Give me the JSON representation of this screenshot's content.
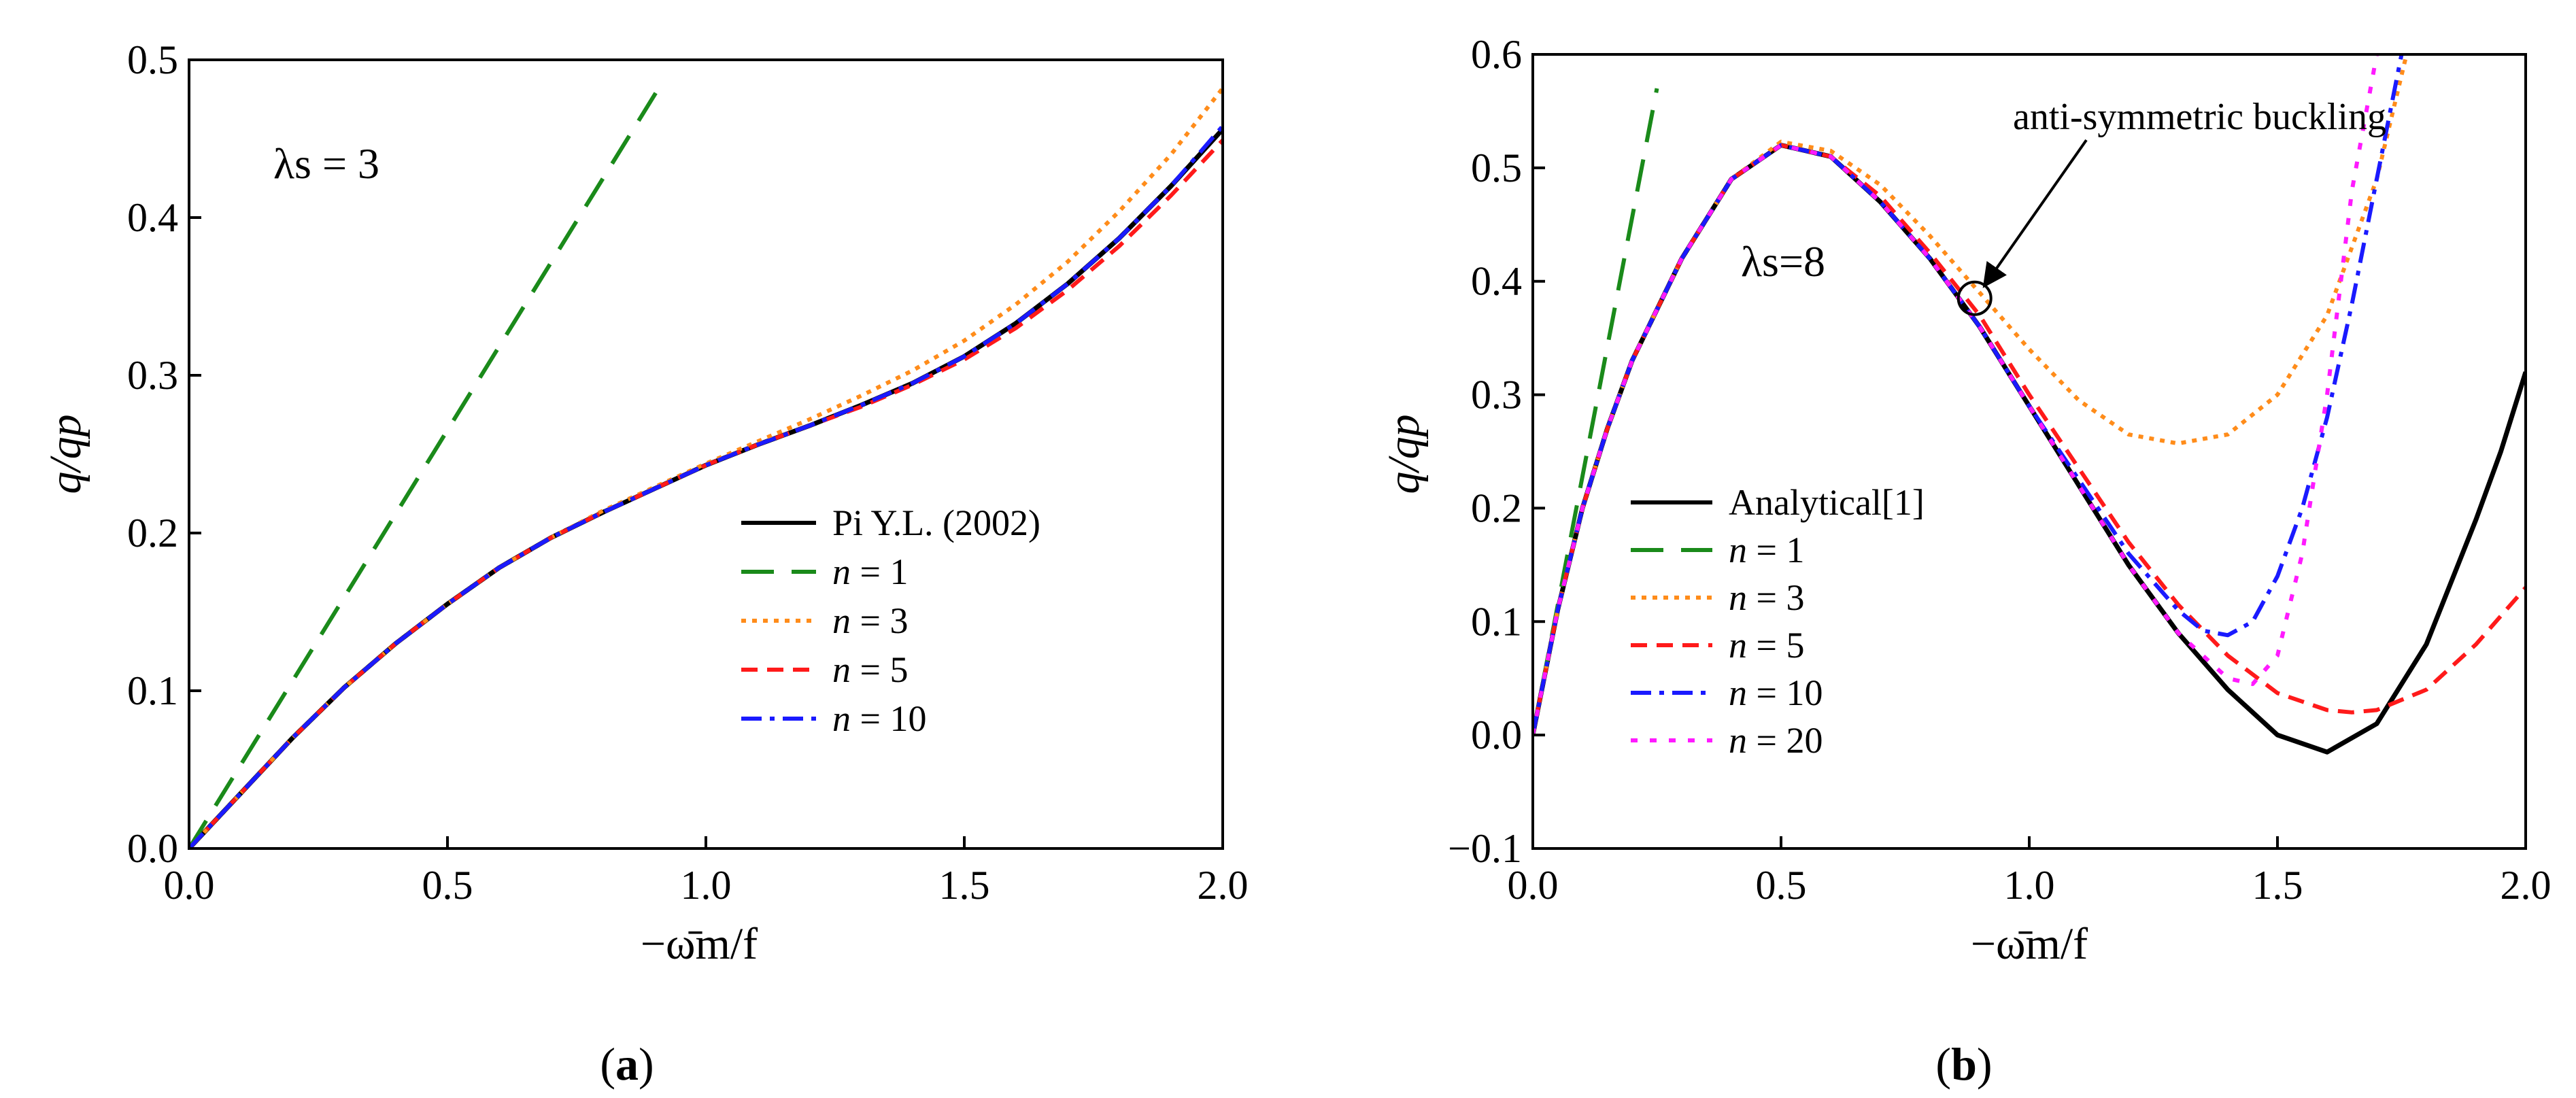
{
  "colors": {
    "black": "#000000",
    "green": "#1a8a1a",
    "orange": "#ff8c1a",
    "red": "#ff1a1a",
    "blue": "#1a1aff",
    "magenta": "#ff1aff"
  },
  "chart_data": [
    {
      "type": "line",
      "panel_label": "a",
      "xlim": [
        0,
        2.0
      ],
      "ylim": [
        0,
        0.5
      ],
      "xticks": [
        "0.0",
        "0.5",
        "1.0",
        "1.5",
        "2.0"
      ],
      "yticks": [
        "0.0",
        "0.1",
        "0.2",
        "0.3",
        "0.4",
        "0.5"
      ],
      "xlabel": "−ω̄m/f",
      "ylabel": "q/qp",
      "annotation": "λs = 3",
      "legend_position": "bottom-right",
      "series": [
        {
          "name": "Pi Y.L. (2002)",
          "color": "black",
          "style": "solid",
          "x": [
            0,
            0.1,
            0.2,
            0.3,
            0.4,
            0.5,
            0.6,
            0.7,
            0.8,
            0.9,
            1.0,
            1.1,
            1.2,
            1.3,
            1.4,
            1.5,
            1.6,
            1.7,
            1.8,
            1.9,
            2.0
          ],
          "y": [
            0,
            0.035,
            0.07,
            0.102,
            0.13,
            0.155,
            0.178,
            0.197,
            0.213,
            0.228,
            0.243,
            0.256,
            0.268,
            0.281,
            0.295,
            0.312,
            0.333,
            0.358,
            0.387,
            0.42,
            0.456
          ]
        },
        {
          "name": "n = 1",
          "color": "green",
          "style": "dashed",
          "x": [
            0,
            0.92
          ],
          "y": [
            0,
            0.488
          ]
        },
        {
          "name": "n = 3",
          "color": "orange",
          "style": "dotted",
          "x": [
            0,
            0.1,
            0.2,
            0.3,
            0.4,
            0.5,
            0.6,
            0.7,
            0.8,
            0.9,
            1.0,
            1.1,
            1.2,
            1.3,
            1.4,
            1.5,
            1.6,
            1.7,
            1.8,
            1.9,
            2.0
          ],
          "y": [
            0,
            0.035,
            0.07,
            0.102,
            0.13,
            0.155,
            0.178,
            0.197,
            0.214,
            0.229,
            0.244,
            0.258,
            0.272,
            0.287,
            0.303,
            0.322,
            0.345,
            0.372,
            0.404,
            0.44,
            0.482
          ]
        },
        {
          "name": "n = 5",
          "color": "red",
          "style": "dashed-short",
          "x": [
            0,
            0.1,
            0.2,
            0.3,
            0.4,
            0.5,
            0.6,
            0.7,
            0.8,
            0.9,
            1.0,
            1.1,
            1.2,
            1.3,
            1.4,
            1.5,
            1.6,
            1.7,
            1.8,
            1.9,
            2.0
          ],
          "y": [
            0,
            0.035,
            0.07,
            0.102,
            0.13,
            0.155,
            0.178,
            0.197,
            0.213,
            0.228,
            0.243,
            0.256,
            0.268,
            0.28,
            0.294,
            0.31,
            0.33,
            0.354,
            0.382,
            0.414,
            0.449
          ]
        },
        {
          "name": "n = 10",
          "color": "blue",
          "style": "dashdot",
          "x": [
            0,
            0.1,
            0.2,
            0.3,
            0.4,
            0.5,
            0.6,
            0.7,
            0.8,
            0.9,
            1.0,
            1.1,
            1.2,
            1.3,
            1.4,
            1.5,
            1.6,
            1.7,
            1.8,
            1.9,
            2.0
          ],
          "y": [
            0,
            0.035,
            0.07,
            0.102,
            0.13,
            0.155,
            0.178,
            0.197,
            0.213,
            0.228,
            0.243,
            0.256,
            0.268,
            0.281,
            0.295,
            0.312,
            0.333,
            0.358,
            0.387,
            0.42,
            0.458
          ]
        }
      ]
    },
    {
      "type": "line",
      "panel_label": "b",
      "xlim": [
        0,
        2.0
      ],
      "ylim": [
        -0.1,
        0.6
      ],
      "xticks": [
        "0.0",
        "0.5",
        "1.0",
        "1.5",
        "2.0"
      ],
      "yticks": [
        "−0.1",
        "0.0",
        "0.1",
        "0.2",
        "0.3",
        "0.4",
        "0.5",
        "0.6"
      ],
      "xlabel": "−ω̄m/f",
      "ylabel": "q/qp",
      "annotation": "λs=8",
      "callout": "anti-symmetric buckling",
      "callout_point": [
        0.89,
        0.385
      ],
      "legend_position": "bottom-left",
      "series": [
        {
          "name": "Analytical[1]",
          "color": "black",
          "style": "solid",
          "x": [
            0,
            0.05,
            0.1,
            0.15,
            0.2,
            0.3,
            0.4,
            0.5,
            0.6,
            0.7,
            0.8,
            0.9,
            1.0,
            1.1,
            1.2,
            1.3,
            1.4,
            1.5,
            1.6,
            1.7,
            1.8,
            1.9,
            1.95,
            2.0
          ],
          "y": [
            0,
            0.11,
            0.2,
            0.27,
            0.33,
            0.42,
            0.49,
            0.52,
            0.51,
            0.47,
            0.42,
            0.36,
            0.29,
            0.22,
            0.15,
            0.09,
            0.04,
            0.0,
            -0.015,
            0.01,
            0.08,
            0.19,
            0.25,
            0.32
          ]
        },
        {
          "name": "n = 1",
          "color": "green",
          "style": "dashed",
          "x": [
            0,
            0.25
          ],
          "y": [
            0,
            0.57
          ]
        },
        {
          "name": "n = 3",
          "color": "orange",
          "style": "dotted",
          "x": [
            0,
            0.05,
            0.1,
            0.15,
            0.2,
            0.3,
            0.4,
            0.5,
            0.6,
            0.7,
            0.8,
            0.9,
            1.0,
            1.1,
            1.2,
            1.3,
            1.4,
            1.5,
            1.6,
            1.7,
            1.76
          ],
          "y": [
            0,
            0.11,
            0.2,
            0.27,
            0.33,
            0.42,
            0.49,
            0.523,
            0.515,
            0.485,
            0.44,
            0.39,
            0.34,
            0.295,
            0.265,
            0.257,
            0.265,
            0.3,
            0.37,
            0.49,
            0.6
          ]
        },
        {
          "name": "n = 5",
          "color": "red",
          "style": "dashed-short",
          "x": [
            0,
            0.05,
            0.1,
            0.15,
            0.2,
            0.3,
            0.4,
            0.5,
            0.6,
            0.7,
            0.8,
            0.9,
            1.0,
            1.1,
            1.2,
            1.3,
            1.4,
            1.5,
            1.6,
            1.65,
            1.7,
            1.8,
            1.9,
            2.0
          ],
          "y": [
            0,
            0.11,
            0.2,
            0.27,
            0.33,
            0.42,
            0.49,
            0.52,
            0.51,
            0.475,
            0.425,
            0.37,
            0.3,
            0.235,
            0.17,
            0.115,
            0.07,
            0.037,
            0.022,
            0.02,
            0.022,
            0.04,
            0.08,
            0.13
          ]
        },
        {
          "name": "n = 10",
          "color": "blue",
          "style": "dashdot",
          "x": [
            0,
            0.05,
            0.1,
            0.15,
            0.2,
            0.3,
            0.4,
            0.5,
            0.6,
            0.7,
            0.8,
            0.9,
            1.0,
            1.1,
            1.2,
            1.3,
            1.35,
            1.4,
            1.45,
            1.5,
            1.55,
            1.6,
            1.65,
            1.7,
            1.75
          ],
          "y": [
            0,
            0.11,
            0.2,
            0.27,
            0.33,
            0.42,
            0.49,
            0.52,
            0.51,
            0.47,
            0.42,
            0.36,
            0.29,
            0.225,
            0.16,
            0.11,
            0.092,
            0.088,
            0.1,
            0.14,
            0.2,
            0.28,
            0.38,
            0.49,
            0.6
          ]
        },
        {
          "name": "n = 20",
          "color": "magenta",
          "style": "dotted-wide",
          "x": [
            0,
            0.05,
            0.1,
            0.15,
            0.2,
            0.3,
            0.4,
            0.5,
            0.6,
            0.7,
            0.8,
            0.9,
            1.0,
            1.1,
            1.2,
            1.3,
            1.4,
            1.45,
            1.5,
            1.55,
            1.6,
            1.65,
            1.7
          ],
          "y": [
            0,
            0.11,
            0.2,
            0.27,
            0.33,
            0.42,
            0.49,
            0.52,
            0.51,
            0.47,
            0.42,
            0.36,
            0.29,
            0.22,
            0.15,
            0.09,
            0.05,
            0.045,
            0.07,
            0.16,
            0.3,
            0.48,
            0.6
          ]
        }
      ]
    }
  ]
}
